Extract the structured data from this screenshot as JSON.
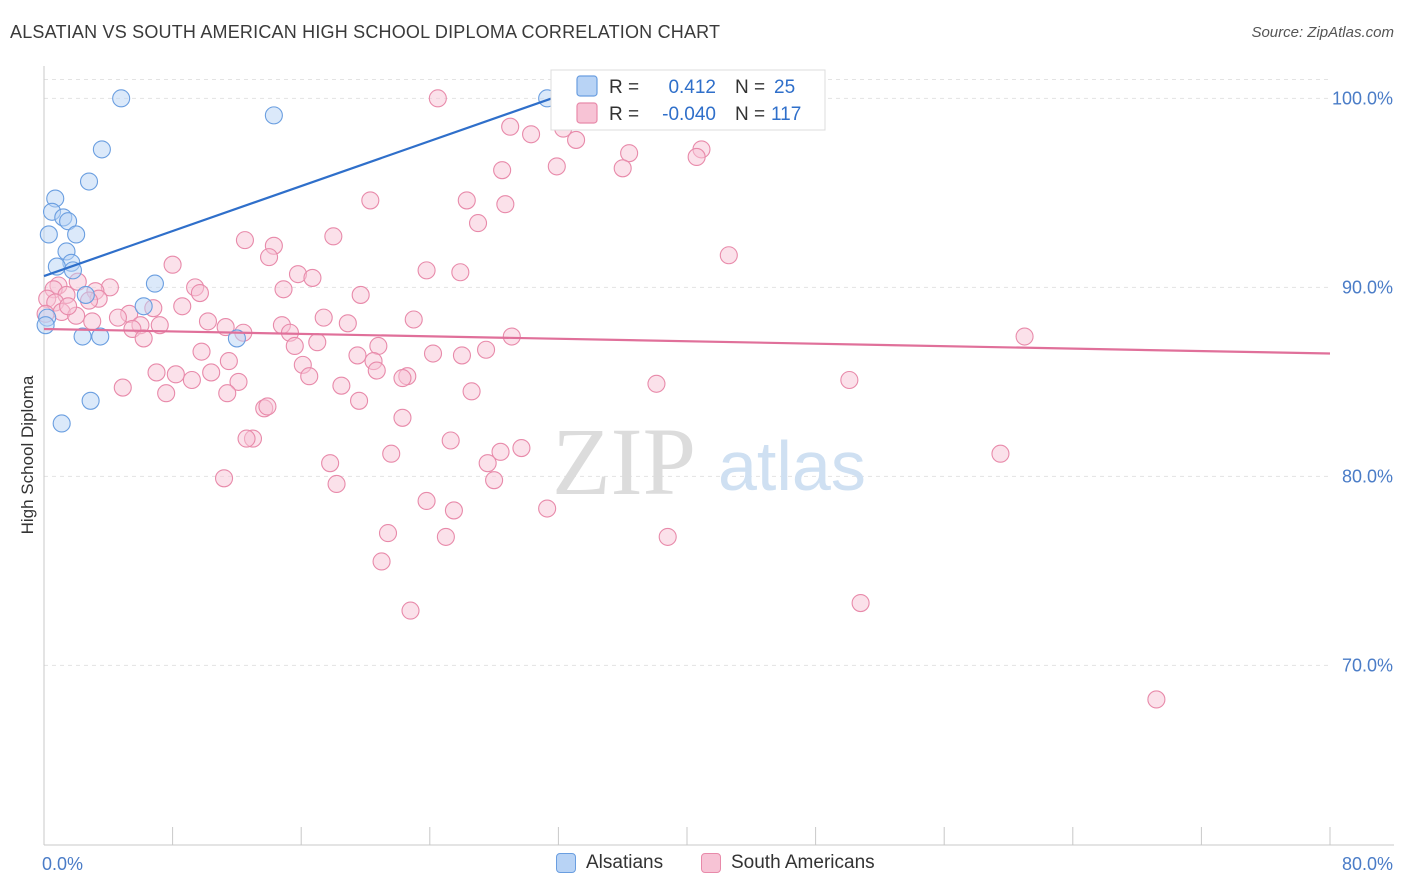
{
  "header": {
    "title": "ALSATIAN VS SOUTH AMERICAN HIGH SCHOOL DIPLOMA CORRELATION CHART",
    "source": "Source: ZipAtlas.com"
  },
  "watermark": {
    "zip": "ZIP",
    "atlas": "atlas"
  },
  "colors": {
    "blue_fill": "#b8d3f5",
    "blue_stroke": "#6a9ee0",
    "blue_line": "#2f6fca",
    "pink_fill": "#f7c3d5",
    "pink_stroke": "#e88aaa",
    "pink_line": "#e0709a",
    "grid": "#e3e3e3",
    "value_text": "#2f6fca"
  },
  "legend": {
    "rows": [
      {
        "r_label": "R =",
        "r_value": "0.412",
        "n_label": "N =",
        "n_value": "25"
      },
      {
        "r_label": "R =",
        "r_value": "-0.040",
        "n_label": "N =",
        "n_value": "117"
      }
    ]
  },
  "bottom_legend": {
    "items": [
      "Alsatians",
      "South Americans"
    ]
  },
  "chart_data": {
    "type": "scatter",
    "title": "ALSATIAN VS SOUTH AMERICAN HIGH SCHOOL DIPLOMA CORRELATION CHART",
    "xlabel": "",
    "ylabel": "High School Diploma",
    "xlim": [
      0,
      80
    ],
    "ylim": [
      60.5,
      101.5
    ],
    "x_tick_labels": [
      "0.0%",
      "80.0%"
    ],
    "y_ticks": [
      70,
      80,
      90,
      100
    ],
    "y_tick_labels": [
      "70.0%",
      "80.0%",
      "90.0%",
      "100.0%"
    ],
    "grid": true,
    "legend_position": "top-center",
    "series": [
      {
        "name": "Alsatians",
        "r": 0.412,
        "n": 25,
        "trend": {
          "x": [
            0,
            32.6
          ],
          "y": [
            90.6,
            100.3
          ]
        },
        "points": [
          [
            4.8,
            100.0
          ],
          [
            14.3,
            99.1
          ],
          [
            3.6,
            97.3
          ],
          [
            2.8,
            95.6
          ],
          [
            0.7,
            94.7
          ],
          [
            0.5,
            94.0
          ],
          [
            1.2,
            93.7
          ],
          [
            1.5,
            93.5
          ],
          [
            0.3,
            92.8
          ],
          [
            2.0,
            92.8
          ],
          [
            1.4,
            91.9
          ],
          [
            1.7,
            91.3
          ],
          [
            0.8,
            91.1
          ],
          [
            1.8,
            90.9
          ],
          [
            6.9,
            90.2
          ],
          [
            2.6,
            89.6
          ],
          [
            6.2,
            89.0
          ],
          [
            0.2,
            88.4
          ],
          [
            2.4,
            87.4
          ],
          [
            3.5,
            87.4
          ],
          [
            12.0,
            87.3
          ],
          [
            2.9,
            84.0
          ],
          [
            1.1,
            82.8
          ],
          [
            31.3,
            100.0
          ],
          [
            0.1,
            88.0
          ]
        ]
      },
      {
        "name": "South Americans",
        "r": -0.04,
        "n": 117,
        "trend": {
          "x": [
            0,
            80
          ],
          "y": [
            87.8,
            86.5
          ]
        },
        "points": [
          [
            24.5,
            100.0
          ],
          [
            32.4,
            99.9
          ],
          [
            39.6,
            99.7
          ],
          [
            29.0,
            98.5
          ],
          [
            32.3,
            98.4
          ],
          [
            30.3,
            98.1
          ],
          [
            33.1,
            97.8
          ],
          [
            40.9,
            97.3
          ],
          [
            36.4,
            97.1
          ],
          [
            40.6,
            96.9
          ],
          [
            31.9,
            96.4
          ],
          [
            36.0,
            96.3
          ],
          [
            28.5,
            96.2
          ],
          [
            20.3,
            94.6
          ],
          [
            26.3,
            94.6
          ],
          [
            28.7,
            94.4
          ],
          [
            27.0,
            93.4
          ],
          [
            18.0,
            92.7
          ],
          [
            12.5,
            92.5
          ],
          [
            14.3,
            92.2
          ],
          [
            8.0,
            91.2
          ],
          [
            14.0,
            91.6
          ],
          [
            42.6,
            91.7
          ],
          [
            23.8,
            90.9
          ],
          [
            25.9,
            90.8
          ],
          [
            15.8,
            90.7
          ],
          [
            16.7,
            90.5
          ],
          [
            2.1,
            90.3
          ],
          [
            0.9,
            90.1
          ],
          [
            4.1,
            90.0
          ],
          [
            0.6,
            89.9
          ],
          [
            9.4,
            90.0
          ],
          [
            14.9,
            89.9
          ],
          [
            3.2,
            89.8
          ],
          [
            19.7,
            89.6
          ],
          [
            9.7,
            89.7
          ],
          [
            1.4,
            89.6
          ],
          [
            0.2,
            89.4
          ],
          [
            3.4,
            89.4
          ],
          [
            0.7,
            89.2
          ],
          [
            2.8,
            89.3
          ],
          [
            8.6,
            89.0
          ],
          [
            6.8,
            88.9
          ],
          [
            1.1,
            88.7
          ],
          [
            2.0,
            88.5
          ],
          [
            5.3,
            88.6
          ],
          [
            4.6,
            88.4
          ],
          [
            17.4,
            88.4
          ],
          [
            23.0,
            88.3
          ],
          [
            18.9,
            88.1
          ],
          [
            10.2,
            88.2
          ],
          [
            14.8,
            88.0
          ],
          [
            6.0,
            88.0
          ],
          [
            11.3,
            87.9
          ],
          [
            5.5,
            87.8
          ],
          [
            12.4,
            87.6
          ],
          [
            15.3,
            87.6
          ],
          [
            29.1,
            87.4
          ],
          [
            61.0,
            87.4
          ],
          [
            6.2,
            87.3
          ],
          [
            17.0,
            87.1
          ],
          [
            15.6,
            86.9
          ],
          [
            20.8,
            86.9
          ],
          [
            27.5,
            86.7
          ],
          [
            9.8,
            86.6
          ],
          [
            24.2,
            86.5
          ],
          [
            19.5,
            86.4
          ],
          [
            11.5,
            86.1
          ],
          [
            20.5,
            86.1
          ],
          [
            16.1,
            85.9
          ],
          [
            20.7,
            85.6
          ],
          [
            7.0,
            85.5
          ],
          [
            10.4,
            85.5
          ],
          [
            8.2,
            85.4
          ],
          [
            16.5,
            85.3
          ],
          [
            22.6,
            85.3
          ],
          [
            22.3,
            85.2
          ],
          [
            9.2,
            85.1
          ],
          [
            12.1,
            85.0
          ],
          [
            50.1,
            85.1
          ],
          [
            38.1,
            84.9
          ],
          [
            18.5,
            84.8
          ],
          [
            4.9,
            84.7
          ],
          [
            11.4,
            84.4
          ],
          [
            7.6,
            84.4
          ],
          [
            26.6,
            84.5
          ],
          [
            19.6,
            84.0
          ],
          [
            13.7,
            83.6
          ],
          [
            22.3,
            83.1
          ],
          [
            13.0,
            82.0
          ],
          [
            12.6,
            82.0
          ],
          [
            25.3,
            81.9
          ],
          [
            29.7,
            81.5
          ],
          [
            28.4,
            81.3
          ],
          [
            21.6,
            81.2
          ],
          [
            59.5,
            81.2
          ],
          [
            17.8,
            80.7
          ],
          [
            27.6,
            80.7
          ],
          [
            11.2,
            79.9
          ],
          [
            28.0,
            79.8
          ],
          [
            18.2,
            79.6
          ],
          [
            23.8,
            78.7
          ],
          [
            25.5,
            78.2
          ],
          [
            31.3,
            78.3
          ],
          [
            21.4,
            77.0
          ],
          [
            25.0,
            76.8
          ],
          [
            38.8,
            76.8
          ],
          [
            21.0,
            75.5
          ],
          [
            22.8,
            72.9
          ],
          [
            50.8,
            73.3
          ],
          [
            69.2,
            68.2
          ],
          [
            0.1,
            88.6
          ],
          [
            1.5,
            89.0
          ],
          [
            3.0,
            88.2
          ],
          [
            7.2,
            88.0
          ],
          [
            13.9,
            83.7
          ],
          [
            26.0,
            86.4
          ]
        ]
      }
    ]
  }
}
